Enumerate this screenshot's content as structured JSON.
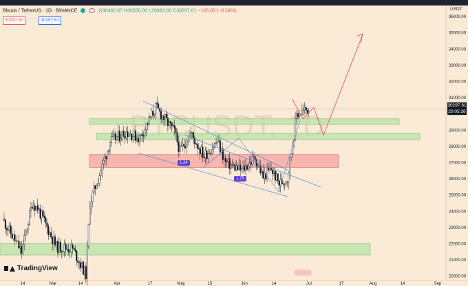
{
  "header": {
    "title": "Bitcoin / TetherUS · 1D · BINANCE",
    "open": "O30462.67",
    "high": "H30550.00",
    "low": "L29963.60",
    "close": "C30297.61",
    "change": "−165.05 (−0.54%)",
    "price_a": "30297.60",
    "price_b": "30297.61"
  },
  "watermark": "BTCUSDT, 1D",
  "currency": "USDT",
  "current_price": "30297.61",
  "countdown": "20:05:38",
  "logo_text": "TradingView",
  "annotations": {
    "ratio_a": "1.24",
    "ratio_b": "1.75"
  },
  "colors": {
    "bg": "#fbebd6",
    "up": "#26a69a",
    "down": "#ef5350",
    "zone_green": "#b9e3a7",
    "zone_red": "#f4a3a0",
    "channel": "#5f8fd6",
    "arrow": "#e8545c"
  },
  "chart_data": {
    "type": "candlestick",
    "symbol": "BTCUSDT",
    "interval": "1D",
    "ylim": [
      19900,
      36600
    ],
    "y_ticks": [
      20000,
      21000,
      22000,
      23000,
      24000,
      25000,
      26000,
      27000,
      28000,
      29000,
      30000,
      31000,
      32000,
      33000,
      34000,
      35000,
      36000
    ],
    "y_tick_labels": [
      "20000.00",
      "21000.00",
      "22000.00",
      "23000.00",
      "24000.00",
      "25000.00",
      "26000.00",
      "27000.00",
      "28000.00",
      "29000.00",
      "30000.00",
      "31000.00",
      "32000.00",
      "33000.00",
      "34000.00",
      "35000.00",
      "36000.00"
    ],
    "x_ticks": [
      "14",
      "Mar",
      "14",
      "Apr",
      "17",
      "May",
      "15",
      "Jun",
      "14",
      "Jul",
      "17",
      "Aug",
      "14",
      "Sep"
    ],
    "zones": [
      {
        "type": "support",
        "color": "green",
        "low": 29350,
        "high": 29700
      },
      {
        "type": "support",
        "color": "green",
        "low": 28400,
        "high": 28800
      },
      {
        "type": "resistance",
        "color": "red",
        "low": 26700,
        "high": 27500
      },
      {
        "type": "support",
        "color": "green",
        "low": 21300,
        "high": 22000
      }
    ]
  }
}
